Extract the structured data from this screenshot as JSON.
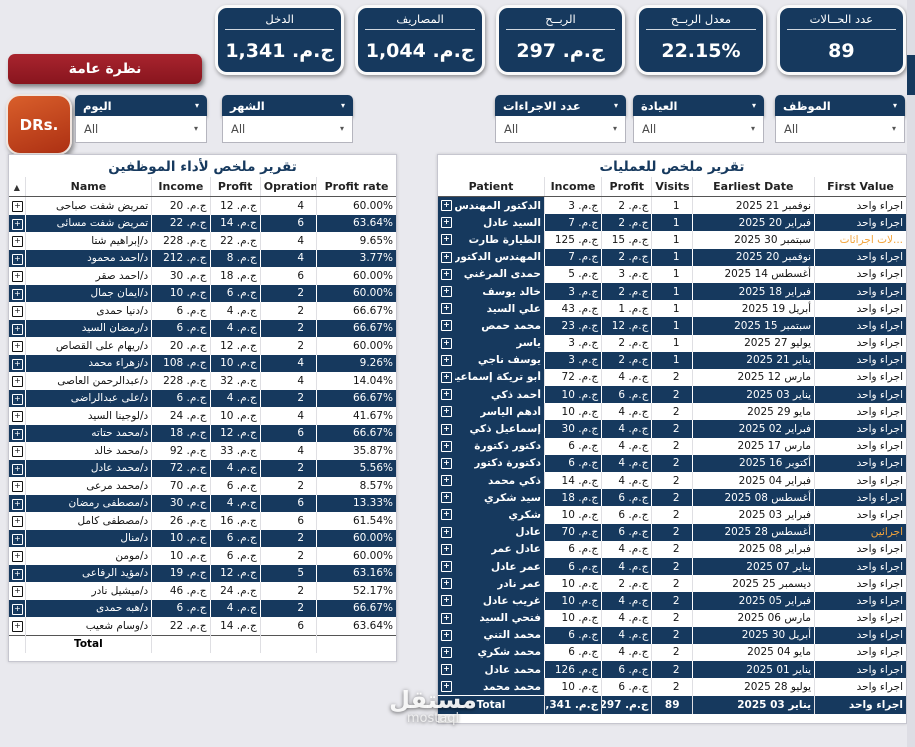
{
  "kpis": [
    {
      "label": "الدخل",
      "value": "ج.م. 1,341"
    },
    {
      "label": "المصاريف",
      "value": "ج.م. 1,044"
    },
    {
      "label": "الربــح",
      "value": "ج.م. 297"
    },
    {
      "label": "معدل الربــح",
      "value": "22.15%"
    },
    {
      "label": "عدد الحــالات",
      "value": "89"
    }
  ],
  "overview_button": "نظرة عامة",
  "drs_button": "DRs.",
  "slicers": [
    {
      "label": "اليوم",
      "value": "All"
    },
    {
      "label": "الشهر",
      "value": "All"
    },
    {
      "label": "عدد الاجراءات",
      "value": "All"
    },
    {
      "label": "العيادة",
      "value": "All"
    },
    {
      "label": "الموظف",
      "value": "All"
    }
  ],
  "staff_table": {
    "title": "تقرير ملخص لأداء الموظفين",
    "columns": [
      "Name",
      "Income",
      "Profit",
      "Oprations",
      "Profit rate"
    ],
    "rows": [
      {
        "name": "تمريض شفت صباحى",
        "income": "ج.م. 20",
        "profit": "ج.م. 12",
        "oprations": "4",
        "profit_rate": "60.00%"
      },
      {
        "name": "تمريض شفت مسائى",
        "income": "ج.م. 22",
        "profit": "ج.م. 14",
        "oprations": "6",
        "profit_rate": "63.64%"
      },
      {
        "name": "د/إبراهيم شتا",
        "income": "ج.م. 228",
        "profit": "ج.م. 22",
        "oprations": "4",
        "profit_rate": "9.65%"
      },
      {
        "name": "د/احمد محمود",
        "income": "ج.م. 212",
        "profit": "ج.م. 8",
        "oprations": "4",
        "profit_rate": "3.77%"
      },
      {
        "name": "د/احمد صقر",
        "income": "ج.م. 30",
        "profit": "ج.م. 18",
        "oprations": "6",
        "profit_rate": "60.00%"
      },
      {
        "name": "د/ايمان جمال",
        "income": "ج.م. 10",
        "profit": "ج.م. 6",
        "oprations": "2",
        "profit_rate": "60.00%"
      },
      {
        "name": "د/دنيا حمدى",
        "income": "ج.م. 6",
        "profit": "ج.م. 4",
        "oprations": "2",
        "profit_rate": "66.67%"
      },
      {
        "name": "د/رمضان السيد",
        "income": "ج.م. 6",
        "profit": "ج.م. 4",
        "oprations": "2",
        "profit_rate": "66.67%"
      },
      {
        "name": "د/ريهام على القصاص",
        "income": "ج.م. 20",
        "profit": "ج.م. 12",
        "oprations": "2",
        "profit_rate": "60.00%"
      },
      {
        "name": "د/زهراء محمد",
        "income": "ج.م. 108",
        "profit": "ج.م. 10",
        "oprations": "4",
        "profit_rate": "9.26%"
      },
      {
        "name": "د/عبدالرحمن العاصى",
        "income": "ج.م. 228",
        "profit": "ج.م. 32",
        "oprations": "4",
        "profit_rate": "14.04%"
      },
      {
        "name": "د/على عبدالراضى",
        "income": "ج.م. 6",
        "profit": "ج.م. 4",
        "oprations": "2",
        "profit_rate": "66.67%"
      },
      {
        "name": "د/لوجينا السيد",
        "income": "ج.م. 24",
        "profit": "ج.م. 10",
        "oprations": "4",
        "profit_rate": "41.67%"
      },
      {
        "name": "د/محمد حتاته",
        "income": "ج.م. 18",
        "profit": "ج.م. 12",
        "oprations": "6",
        "profit_rate": "66.67%"
      },
      {
        "name": "د/محمد خالد",
        "income": "ج.م. 92",
        "profit": "ج.م. 33",
        "oprations": "4",
        "profit_rate": "35.87%"
      },
      {
        "name": "د/محمد عادل",
        "income": "ج.م. 72",
        "profit": "ج.م. 4",
        "oprations": "2",
        "profit_rate": "5.56%"
      },
      {
        "name": "د/محمد مرعى",
        "income": "ج.م. 70",
        "profit": "ج.م. 6",
        "oprations": "2",
        "profit_rate": "8.57%"
      },
      {
        "name": "د/مصطفى رمضان",
        "income": "ج.م. 30",
        "profit": "ج.م. 4",
        "oprations": "6",
        "profit_rate": "13.33%"
      },
      {
        "name": "د/مصطفى كامل",
        "income": "ج.م. 26",
        "profit": "ج.م. 16",
        "oprations": "6",
        "profit_rate": "61.54%"
      },
      {
        "name": "د/منال",
        "income": "ج.م. 10",
        "profit": "ج.م. 6",
        "oprations": "2",
        "profit_rate": "60.00%"
      },
      {
        "name": "د/مومن",
        "income": "ج.م. 10",
        "profit": "ج.م. 6",
        "oprations": "2",
        "profit_rate": "60.00%"
      },
      {
        "name": "د/مؤيد الرفاعى",
        "income": "ج.م. 19",
        "profit": "ج.م. 12",
        "oprations": "5",
        "profit_rate": "63.16%"
      },
      {
        "name": "د/ميشيل نادر",
        "income": "ج.م. 46",
        "profit": "ج.م. 24",
        "oprations": "2",
        "profit_rate": "52.17%"
      },
      {
        "name": "د/هبه حمدى",
        "income": "ج.م. 6",
        "profit": "ج.م. 4",
        "oprations": "2",
        "profit_rate": "66.67%"
      },
      {
        "name": "د/وسام شعيب",
        "income": "ج.م. 22",
        "profit": "ج.م. 14",
        "oprations": "6",
        "profit_rate": "63.64%"
      }
    ],
    "total_label": "Total"
  },
  "operations_table": {
    "title": "تقرير ملخص للعمليات",
    "columns": [
      "Patient",
      "Income",
      "Profit",
      "Visits",
      "Earliest Date",
      "First Value"
    ],
    "rows": [
      {
        "patient": "الدكتور المهندس",
        "income": "ج.م. 3",
        "profit": "ج.م. 2",
        "visits": "1",
        "date": "نوفمبر 21 2025",
        "first_value": "اجراء واحد",
        "highlight": false
      },
      {
        "patient": "السيد عادل",
        "income": "ج.م. 7",
        "profit": "ج.م. 2",
        "visits": "1",
        "date": "فبراير 20 2025",
        "first_value": "اجراء واحد",
        "highlight": false
      },
      {
        "patient": "الطيارة طارت",
        "income": "ج.م. 125",
        "profit": "ج.م. 15",
        "visits": "1",
        "date": "سبتمبر 30 2025",
        "first_value": "...لات اجرائات",
        "highlight": true
      },
      {
        "patient": "المهندس الدكتور",
        "income": "ج.م. 7",
        "profit": "ج.م. 2",
        "visits": "1",
        "date": "نوفمبر 20 2025",
        "first_value": "اجراء واحد",
        "highlight": false
      },
      {
        "patient": "حمدى المرغني",
        "income": "ج.م. 5",
        "profit": "ج.م. 3",
        "visits": "1",
        "date": "أغسطس 14 2025",
        "first_value": "اجراء واحد",
        "highlight": false
      },
      {
        "patient": "خالد يوسف",
        "income": "ج.م. 3",
        "profit": "ج.م. 2",
        "visits": "1",
        "date": "فبراير 18 2025",
        "first_value": "اجراء واحد",
        "highlight": false
      },
      {
        "patient": "علي السيد",
        "income": "ج.م. 43",
        "profit": "ج.م. 1",
        "visits": "1",
        "date": "أبريل 19 2025",
        "first_value": "اجراء واحد",
        "highlight": false
      },
      {
        "patient": "محمد حمص",
        "income": "ج.م. 23",
        "profit": "ج.م. 12",
        "visits": "1",
        "date": "سبتمبر 15 2025",
        "first_value": "اجراء واحد",
        "highlight": false
      },
      {
        "patient": "ياسر",
        "income": "ج.م. 3",
        "profit": "ج.م. 2",
        "visits": "1",
        "date": "يوليو 27 2025",
        "first_value": "اجراء واحد",
        "highlight": false
      },
      {
        "patient": "يوسف ناجي",
        "income": "ج.م. 3",
        "profit": "ج.م. 2",
        "visits": "1",
        "date": "يناير 21 2025",
        "first_value": "اجراء واحد",
        "highlight": false
      },
      {
        "patient": "أبو تريكة إسماعيل",
        "income": "ج.م. 72",
        "profit": "ج.م. 4",
        "visits": "2",
        "date": "مارس 12 2025",
        "first_value": "اجراء واحد",
        "highlight": false
      },
      {
        "patient": "أحمد ذكي",
        "income": "ج.م. 10",
        "profit": "ج.م. 6",
        "visits": "2",
        "date": "يناير 03 2025",
        "first_value": "اجراء واحد",
        "highlight": false
      },
      {
        "patient": "أدهم الياسر",
        "income": "ج.م. 10",
        "profit": "ج.م. 4",
        "visits": "2",
        "date": "مايو 29 2025",
        "first_value": "اجراء واحد",
        "highlight": false
      },
      {
        "patient": "إسماعيل ذكي",
        "income": "ج.م. 30",
        "profit": "ج.م. 4",
        "visits": "2",
        "date": "فبراير 02 2025",
        "first_value": "اجراء واحد",
        "highlight": false
      },
      {
        "patient": "دكتور دكتورة",
        "income": "ج.م. 6",
        "profit": "ج.م. 4",
        "visits": "2",
        "date": "مارس 17 2025",
        "first_value": "اجراء واحد",
        "highlight": false
      },
      {
        "patient": "دكتورة دكتور",
        "income": "ج.م. 6",
        "profit": "ج.م. 4",
        "visits": "2",
        "date": "أكتوبر 16 2025",
        "first_value": "اجراء واحد",
        "highlight": false
      },
      {
        "patient": "ذكي محمد",
        "income": "ج.م. 14",
        "profit": "ج.م. 4",
        "visits": "2",
        "date": "فبراير 04 2025",
        "first_value": "اجراء واحد",
        "highlight": false
      },
      {
        "patient": "سيد شكري",
        "income": "ج.م. 18",
        "profit": "ج.م. 6",
        "visits": "2",
        "date": "أغسطس 08 2025",
        "first_value": "اجراء واحد",
        "highlight": false
      },
      {
        "patient": "شكري",
        "income": "ج.م. 10",
        "profit": "ج.م. 6",
        "visits": "2",
        "date": "فبراير 03 2025",
        "first_value": "اجراء واحد",
        "highlight": false
      },
      {
        "patient": "عادل",
        "income": "ج.م. 70",
        "profit": "ج.م. 6",
        "visits": "2",
        "date": "أغسطس 28 2025",
        "first_value": "اجرائين",
        "highlight": true
      },
      {
        "patient": "عادل عمر",
        "income": "ج.م. 6",
        "profit": "ج.م. 4",
        "visits": "2",
        "date": "فبراير 08 2025",
        "first_value": "اجراء واحد",
        "highlight": false
      },
      {
        "patient": "عمر عادل",
        "income": "ج.م. 6",
        "profit": "ج.م. 4",
        "visits": "2",
        "date": "يناير 07 2025",
        "first_value": "اجراء واحد",
        "highlight": false
      },
      {
        "patient": "عمر نادر",
        "income": "ج.م. 10",
        "profit": "ج.م. 2",
        "visits": "2",
        "date": "ديسمبر 25 2025",
        "first_value": "اجراء واحد",
        "highlight": false
      },
      {
        "patient": "غريب عادل",
        "income": "ج.م. 10",
        "profit": "ج.م. 4",
        "visits": "2",
        "date": "فبراير 05 2025",
        "first_value": "اجراء واحد",
        "highlight": false
      },
      {
        "patient": "فتحي السيد",
        "income": "ج.م. 10",
        "profit": "ج.م. 4",
        "visits": "2",
        "date": "مارس 06 2025",
        "first_value": "اجراء واحد",
        "highlight": false
      },
      {
        "patient": "محمد التني",
        "income": "ج.م. 6",
        "profit": "ج.م. 4",
        "visits": "2",
        "date": "أبريل 30 2025",
        "first_value": "اجراء واحد",
        "highlight": false
      },
      {
        "patient": "محمد شكري",
        "income": "ج.م. 6",
        "profit": "ج.م. 4",
        "visits": "2",
        "date": "مايو 04 2025",
        "first_value": "اجراء واحد",
        "highlight": false
      },
      {
        "patient": "محمد عادل",
        "income": "ج.م. 126",
        "profit": "ج.م. 6",
        "visits": "2",
        "date": "يناير 01 2025",
        "first_value": "اجراء واحد",
        "highlight": false
      },
      {
        "patient": "محمد محمد",
        "income": "ج.م. 10",
        "profit": "ج.م. 6",
        "visits": "2",
        "date": "يوليو 28 2025",
        "first_value": "اجراء واحد",
        "highlight": false
      }
    ],
    "total": {
      "label": "Total",
      "income": "ج.م. 1,341",
      "profit": "ج.م. 297",
      "visits": "89",
      "date": "يناير 03 2025",
      "first_value": "اجراء واحد"
    }
  },
  "watermark": {
    "ar": "مستقل",
    "en": "mostaql"
  },
  "colors": {
    "navy": "#16395e",
    "maroon_button": "#98202a",
    "drs_button_orange": "#c84a20",
    "highlight_orange": "#f2a43c",
    "background": "#e9e9ee"
  }
}
